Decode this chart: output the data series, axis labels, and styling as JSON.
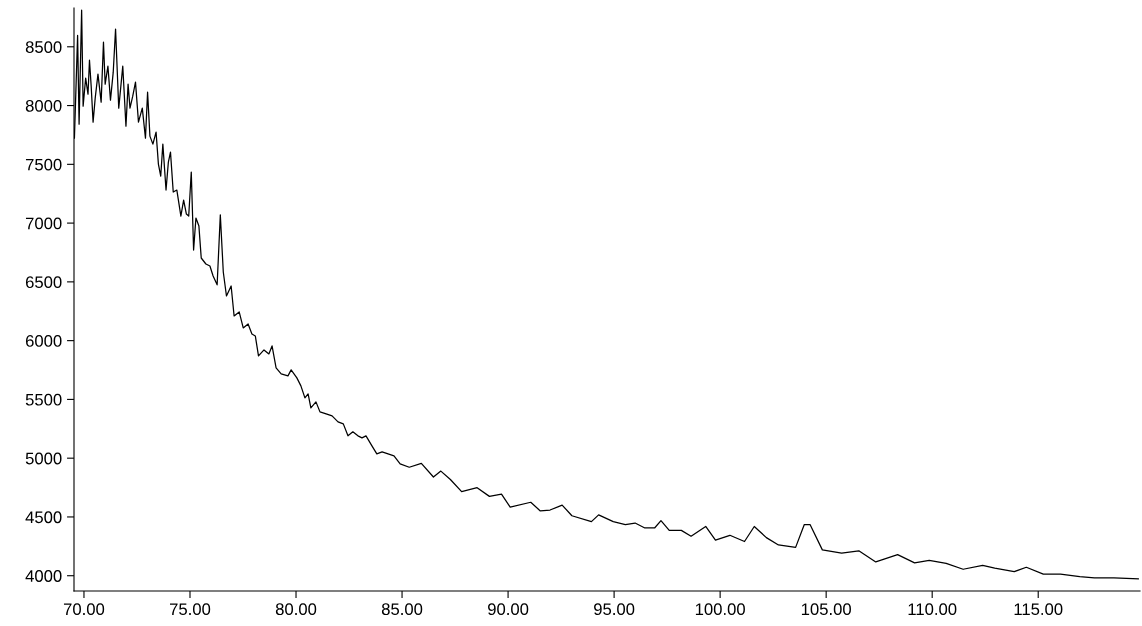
{
  "chart_data": {
    "type": "line",
    "grid": false,
    "legend": false,
    "marker": "none",
    "line_style": "solid",
    "xlim": [
      69.53,
      119.8
    ],
    "ylim": [
      3870,
      8830
    ],
    "xticks": [
      {
        "value": 70,
        "label": "70.00"
      },
      {
        "value": 75,
        "label": "75.00"
      },
      {
        "value": 80,
        "label": "80.00"
      },
      {
        "value": 85,
        "label": "85.00"
      },
      {
        "value": 90,
        "label": "90.00"
      },
      {
        "value": 95,
        "label": "95.00"
      },
      {
        "value": 100,
        "label": "100.00"
      },
      {
        "value": 105,
        "label": "105.00"
      },
      {
        "value": 110,
        "label": "110.00"
      },
      {
        "value": 115,
        "label": "115.00"
      }
    ],
    "yticks": [
      4000,
      4500,
      5000,
      5500,
      6000,
      6500,
      7000,
      7500,
      8000,
      8500
    ],
    "series": [
      {
        "color": "#000000",
        "x": [
          69.55,
          69.7,
          69.77,
          69.89,
          69.96,
          70.08,
          70.19,
          70.26,
          70.34,
          70.43,
          70.53,
          70.66,
          70.81,
          70.92,
          71.0,
          71.13,
          71.25,
          71.38,
          71.49,
          71.64,
          71.83,
          71.98,
          72.08,
          72.17,
          72.3,
          72.43,
          72.57,
          72.75,
          72.9,
          73.0,
          73.11,
          73.25,
          73.4,
          73.51,
          73.62,
          73.72,
          73.87,
          73.98,
          74.08,
          74.21,
          74.38,
          74.57,
          74.7,
          74.83,
          74.94,
          75.06,
          75.17,
          75.28,
          75.42,
          75.53,
          75.75,
          75.94,
          76.09,
          76.28,
          76.43,
          76.57,
          76.72,
          76.94,
          77.08,
          77.32,
          77.51,
          77.74,
          77.92,
          78.08,
          78.23,
          78.49,
          78.72,
          78.87,
          79.06,
          79.3,
          79.62,
          79.77,
          80.04,
          80.23,
          80.42,
          80.57,
          80.7,
          80.94,
          81.13,
          81.42,
          81.7,
          81.98,
          82.23,
          82.45,
          82.68,
          82.92,
          83.11,
          83.3,
          83.58,
          83.81,
          84.06,
          84.34,
          84.62,
          84.91,
          85.34,
          85.91,
          86.48,
          86.83,
          87.28,
          87.81,
          88.54,
          89.12,
          89.69,
          90.1,
          91.07,
          91.52,
          91.98,
          92.55,
          93.01,
          93.93,
          94.27,
          94.96,
          95.53,
          95.99,
          96.45,
          96.91,
          97.21,
          97.6,
          98.17,
          98.63,
          99.32,
          99.78,
          100.46,
          101.15,
          101.61,
          102.18,
          102.75,
          103.56,
          103.97,
          104.24,
          104.82,
          105.73,
          106.54,
          107.34,
          108.37,
          109.17,
          109.86,
          110.66,
          111.46,
          112.38,
          112.95,
          113.87,
          114.44,
          115.24,
          116.05,
          116.96,
          117.65,
          118.57,
          119.72
        ],
        "values": [
          7723,
          8597,
          7842,
          8811,
          7995,
          8233,
          8097,
          8386,
          8165,
          7859,
          8063,
          8267,
          8029,
          8539,
          8182,
          8335,
          8046,
          8284,
          8651,
          7978,
          8335,
          7825,
          8182,
          7978,
          8080,
          8199,
          7859,
          7978,
          7723,
          8114,
          7740,
          7672,
          7774,
          7502,
          7400,
          7672,
          7281,
          7519,
          7604,
          7264,
          7281,
          7060,
          7196,
          7077,
          7060,
          7434,
          6771,
          7043,
          6975,
          6703,
          6652,
          6635,
          6550,
          6475,
          7070,
          6584,
          6380,
          6465,
          6210,
          6244,
          6108,
          6142,
          6057,
          6040,
          5870,
          5921,
          5887,
          5955,
          5768,
          5717,
          5700,
          5751,
          5683,
          5615,
          5513,
          5547,
          5428,
          5479,
          5394,
          5377,
          5360,
          5309,
          5292,
          5190,
          5224,
          5190,
          5173,
          5190,
          5105,
          5037,
          5054,
          5037,
          5020,
          4952,
          4923,
          4956,
          4840,
          4890,
          4819,
          4716,
          4749,
          4675,
          4695,
          4584,
          4625,
          4551,
          4559,
          4601,
          4510,
          4460,
          4518,
          4460,
          4435,
          4448,
          4406,
          4406,
          4468,
          4386,
          4386,
          4336,
          4419,
          4303,
          4344,
          4291,
          4419,
          4324,
          4262,
          4241,
          4435,
          4435,
          4220,
          4192,
          4212,
          4117,
          4179,
          4109,
          4130,
          4105,
          4055,
          4088,
          4064,
          4035,
          4072,
          4014,
          4014,
          3993,
          3981,
          3981,
          3973
        ]
      }
    ]
  }
}
